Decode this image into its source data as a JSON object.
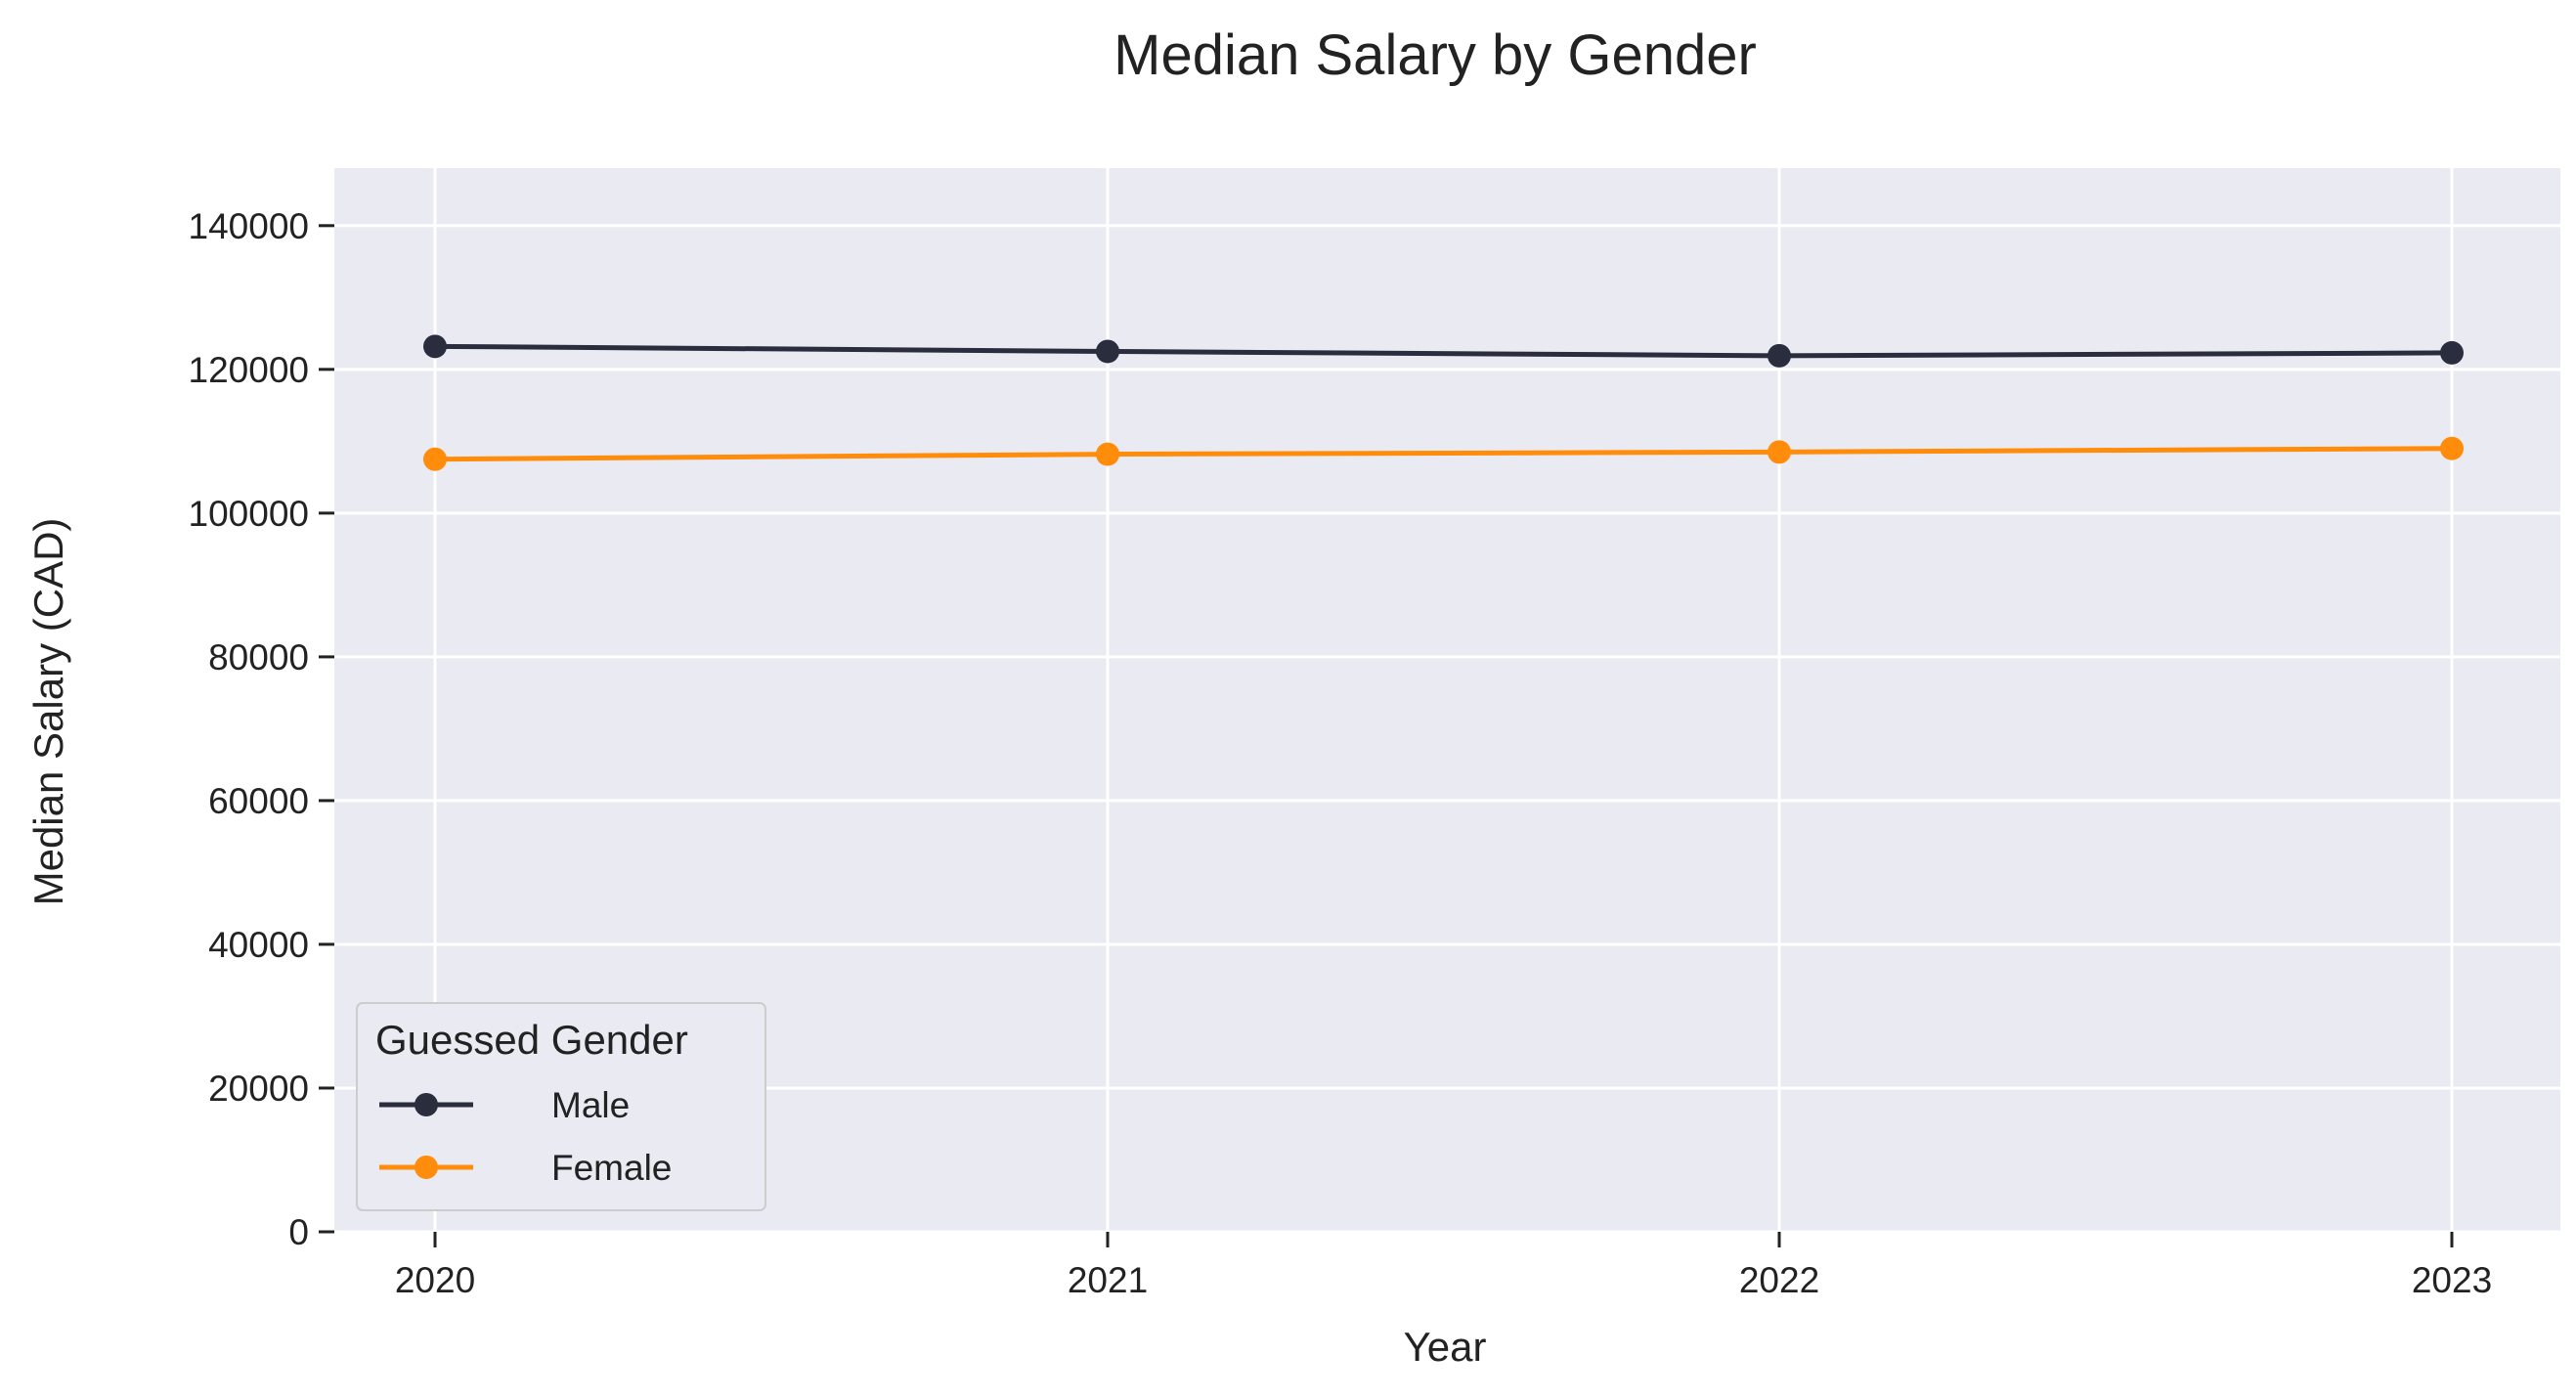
{
  "chart_data": {
    "type": "line",
    "title": "Median Salary by Gender",
    "xlabel": "Year",
    "ylabel": "Median Salary (CAD)",
    "x": [
      "2020",
      "2021",
      "2022",
      "2023"
    ],
    "ylim": [
      0,
      148000
    ],
    "yticks": [
      0,
      20000,
      40000,
      60000,
      80000,
      100000,
      120000,
      140000
    ],
    "grid": true,
    "legend": {
      "title": "Guessed Gender",
      "placement": "lower-left"
    },
    "series": [
      {
        "name": "Male",
        "color": "#2a2d3e",
        "values": [
          123200,
          122500,
          121900,
          122300
        ]
      },
      {
        "name": "Female",
        "color": "#ff8c0a",
        "values": [
          107500,
          108200,
          108500,
          109000
        ]
      }
    ],
    "colors": {
      "plot_background": "#eaeaf2",
      "grid": "#ffffff"
    }
  }
}
